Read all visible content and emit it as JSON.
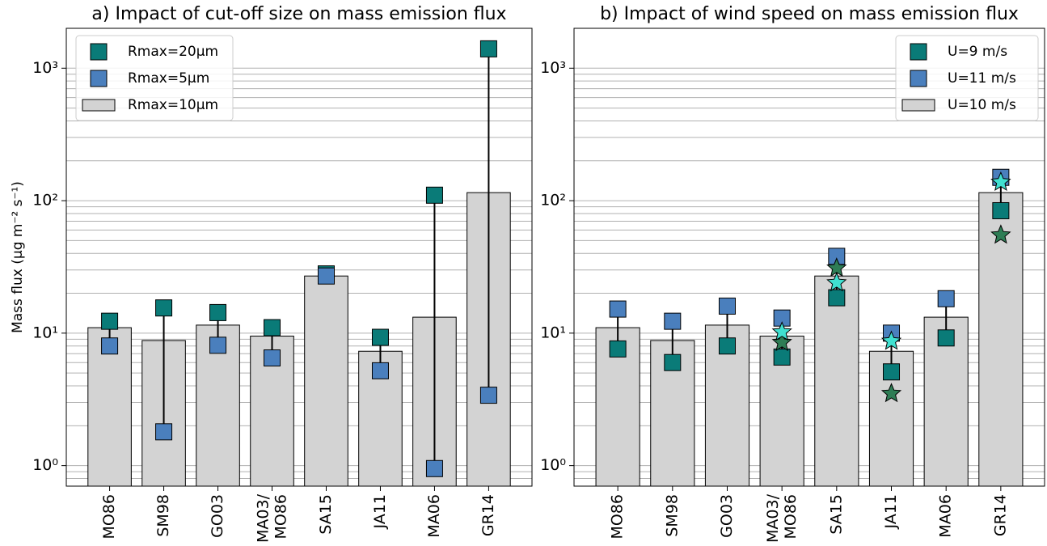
{
  "chart_data": [
    {
      "type": "bar",
      "title": "a) Impact of cut-off size on mass emission flux",
      "ylabel": "Mass flux (μg m⁻² s⁻¹)",
      "categories": [
        "MO86",
        "SM98",
        "GO03",
        "MA03/\nMO86",
        "SA15",
        "JA11",
        "MA06",
        "GR14"
      ],
      "bar": {
        "name": "Rmax=10μm",
        "color": "#d3d3d3",
        "values": [
          11,
          8.8,
          11.5,
          9.5,
          27,
          7.3,
          13.2,
          115
        ]
      },
      "series": [
        {
          "name": "Rmax=20μm",
          "color": "#0a7b78",
          "marker": "square",
          "values": [
            12.3,
            15.5,
            14.3,
            11,
            28,
            9.3,
            110,
            1400
          ]
        },
        {
          "name": "Rmax=5μm",
          "color": "#4a7fbd",
          "marker": "square",
          "values": [
            8.0,
            1.8,
            8.1,
            6.5,
            27,
            5.2,
            0.95,
            3.4
          ]
        }
      ],
      "range_lines": true,
      "log_scale": true,
      "grid": true,
      "minor_grid": true,
      "legend": "upper left",
      "ylim": [
        0.7,
        2000
      ],
      "yticks": [
        {
          "value": 1,
          "label": "10⁰"
        },
        {
          "value": 10,
          "label": "10¹"
        },
        {
          "value": 100,
          "label": "10²"
        },
        {
          "value": 1000,
          "label": "10³"
        }
      ]
    },
    {
      "type": "bar",
      "title": "b) Impact of wind speed on mass emission flux",
      "categories": [
        "MO86",
        "SM98",
        "GO03",
        "MA03/\nMO86",
        "SA15",
        "JA11",
        "MA06",
        "GR14"
      ],
      "bar": {
        "name": "U=10 m/s",
        "color": "#d3d3d3",
        "values": [
          11,
          8.8,
          11.5,
          9.5,
          27,
          7.3,
          13.2,
          115
        ]
      },
      "series": [
        {
          "name": "U=9 m/s",
          "color": "#0a7b78",
          "marker": "square",
          "values": [
            7.6,
            6.0,
            8.0,
            6.6,
            18.5,
            5.1,
            9.2,
            84
          ]
        },
        {
          "name": "U=11 m/s",
          "color": "#4a7fbd",
          "marker": "square",
          "values": [
            15.2,
            12.3,
            16,
            13,
            38,
            10,
            18.2,
            150
          ]
        },
        {
          "color": "#2e7d55",
          "marker": "star",
          "values": [
            null,
            null,
            null,
            8.5,
            31,
            3.5,
            null,
            55
          ]
        },
        {
          "color": "#40e0d0",
          "marker": "star",
          "values": [
            null,
            null,
            null,
            10.2,
            24,
            8.7,
            null,
            138
          ]
        }
      ],
      "range_lines": true,
      "log_scale": true,
      "grid": true,
      "minor_grid": true,
      "legend": "upper right",
      "ylim": [
        0.7,
        2000
      ],
      "yticks": [
        {
          "value": 1,
          "label": "10⁰"
        },
        {
          "value": 10,
          "label": "10¹"
        },
        {
          "value": 100,
          "label": "10²"
        },
        {
          "value": 1000,
          "label": "10³"
        }
      ]
    }
  ]
}
